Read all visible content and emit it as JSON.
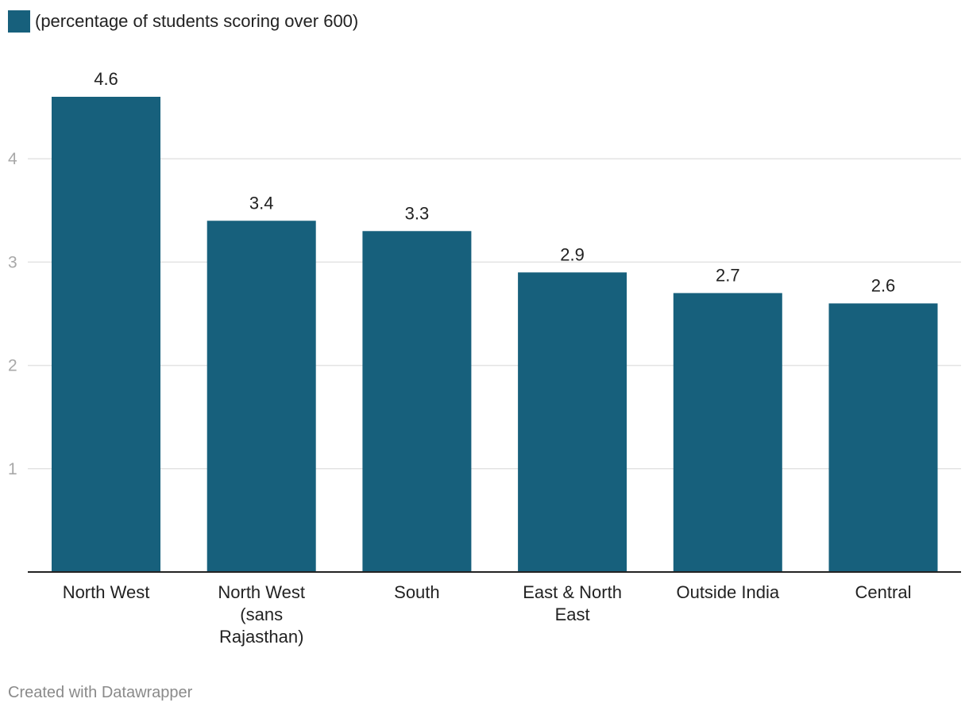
{
  "legend": {
    "label": "(percentage of students scoring over 600)",
    "color": "#17607c"
  },
  "footer": {
    "credit": "Created with Datawrapper"
  },
  "colors": {
    "bar": "#17607c",
    "grid": "#e3e3e3",
    "axis": "#222222",
    "tick_label": "#a8a8a8",
    "text": "#222222"
  },
  "chart_data": {
    "type": "bar",
    "title": "",
    "xlabel": "",
    "ylabel": "",
    "categories": [
      [
        "North West"
      ],
      [
        "North West",
        "(sans",
        "Rajasthan)"
      ],
      [
        "South"
      ],
      [
        "East & North",
        "East"
      ],
      [
        "Outside India"
      ],
      [
        "Central"
      ]
    ],
    "series": [
      {
        "name": "(percentage of students scoring over 600)",
        "values": [
          4.6,
          3.4,
          3.3,
          2.9,
          2.7,
          2.6
        ],
        "labels": [
          "4.6",
          "3.4",
          "3.3",
          "2.9",
          "2.7",
          "2.6"
        ]
      }
    ],
    "yticks": [
      1,
      2,
      3,
      4
    ],
    "ytick_labels": [
      "1",
      "2",
      "3",
      "4"
    ],
    "ylim": [
      0,
      4.6
    ],
    "grid": true,
    "legend_position": "top-left"
  }
}
